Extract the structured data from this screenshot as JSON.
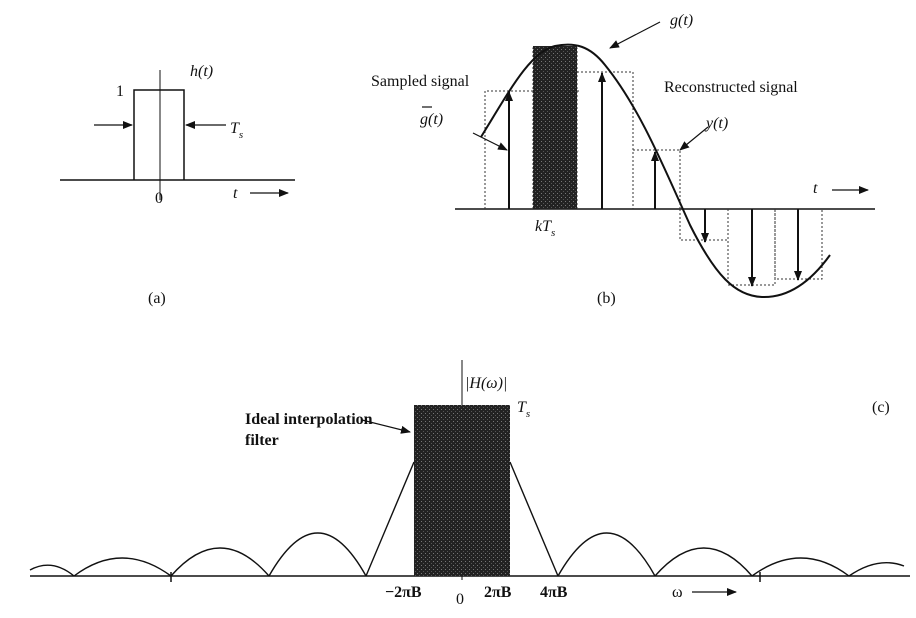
{
  "panel_a": {
    "caption": "(a)",
    "one_label": "1",
    "h_label": "h(t)",
    "ts_label": "T",
    "ts_sub": "s",
    "zero_label": "0",
    "t_label": "t"
  },
  "panel_b": {
    "caption": "(b)",
    "sampled_label": "Sampled signal",
    "gbar_label": "g(t)",
    "g_label": "g(t)",
    "reconstructed_label": "Reconstructed signal",
    "y_label": "y(t)",
    "kts_label": "kT",
    "kts_sub": "s",
    "t_label": "t"
  },
  "panel_c": {
    "caption": "(c)",
    "h_label": "|H(ω)|",
    "ts_label": "T",
    "ts_sub": "s",
    "filter_label_line1": "Ideal interpolation",
    "filter_label_line2": "filter",
    "tick_m2pib": "−2πB",
    "tick_0": "0",
    "tick_2pib": "2πB",
    "tick_4pib": "4πB",
    "omega_label": "ω"
  }
}
